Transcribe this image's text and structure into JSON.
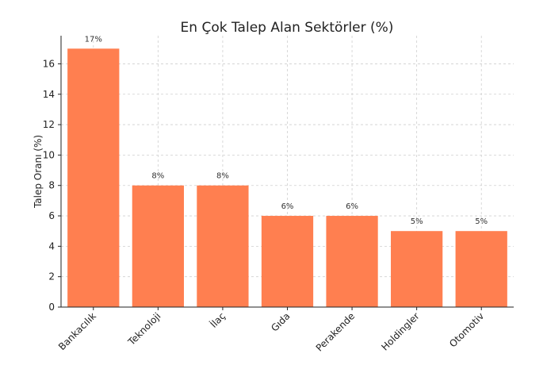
{
  "chart_data": {
    "type": "bar",
    "title": "En Çok Talep Alan Sektörler (%)",
    "xlabel": "",
    "ylabel": "Talep Oranı (%)",
    "categories": [
      "Bankacılık",
      "Teknoloji",
      "İlaç",
      "Gıda",
      "Perakende",
      "Holdingler",
      "Otomotiv"
    ],
    "values": [
      17,
      8,
      8,
      6,
      6,
      5,
      5
    ],
    "data_labels": [
      "17%",
      "8%",
      "8%",
      "6%",
      "6%",
      "5%",
      "5%"
    ],
    "ylim": [
      0,
      17.85
    ],
    "yticks": [
      0,
      2,
      4,
      6,
      8,
      10,
      12,
      14,
      16
    ],
    "grid": true,
    "bar_color": "#FF7F50"
  }
}
